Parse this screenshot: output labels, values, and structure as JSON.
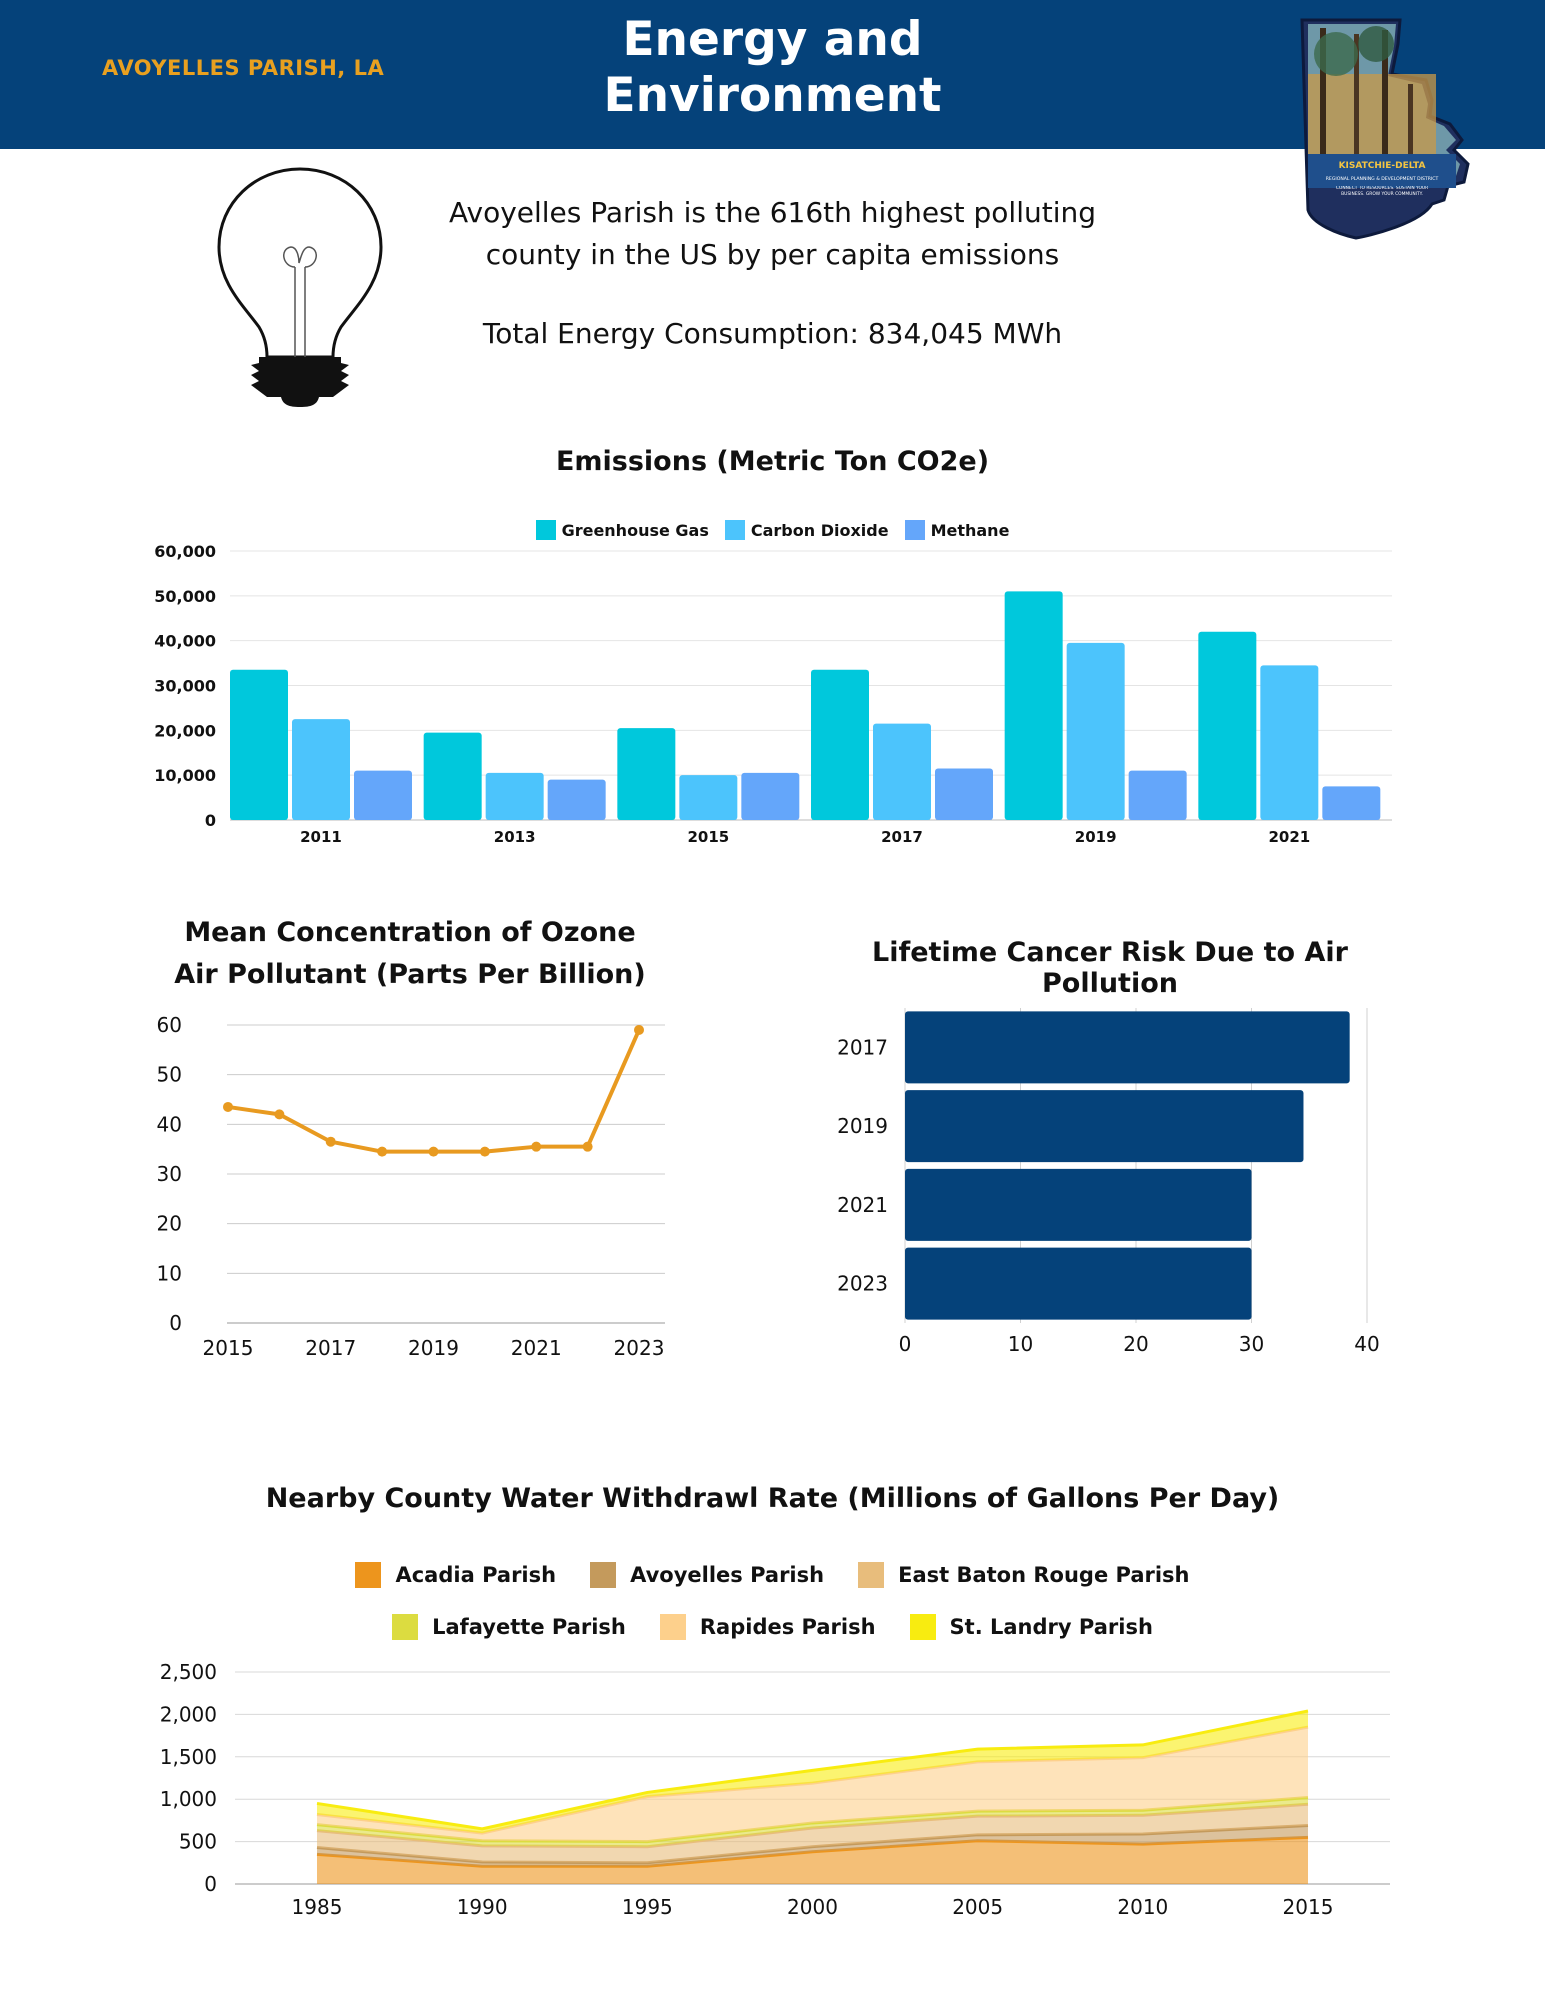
{
  "header": {
    "location": "AVOYELLES PARISH, LA",
    "title_line1": "Energy and",
    "title_line2": "Environment",
    "logo_text": "KISATCHIE-DELTA",
    "logo_subtext": "REGIONAL PLANNING & DEVELOPMENT DISTRICT",
    "logo_tagline": "CONNECT TO RESOURCES. SUSTAIN YOUR BUSINESS. GROW YOUR COMMUNITY."
  },
  "intro": {
    "line1": "Avoyelles Parish is the 616th highest polluting",
    "line2": "county in the US by per capita emissions",
    "consumption": "Total Energy Consumption: 834,045 MWh"
  },
  "colors": {
    "header_bg": "#05427a",
    "accent": "#e8a020"
  },
  "chart_data": [
    {
      "type": "bar",
      "title": "Emissions (Metric Ton CO2e)",
      "categories": [
        "2011",
        "2013",
        "2015",
        "2017",
        "2019",
        "2021"
      ],
      "series": [
        {
          "name": "Greenhouse Gas",
          "color": "#00c8dc",
          "values": [
            33500,
            19500,
            20500,
            33500,
            51000,
            42000
          ]
        },
        {
          "name": "Carbon Dioxide",
          "color": "#4cc4fc",
          "values": [
            22500,
            10500,
            10000,
            21500,
            39500,
            34500
          ]
        },
        {
          "name": "Methane",
          "color": "#64a6fa",
          "values": [
            11000,
            9000,
            10500,
            11500,
            11000,
            7500
          ]
        }
      ],
      "ylim": [
        0,
        60000
      ],
      "yticks": [
        "0",
        "10,000",
        "20,000",
        "30,000",
        "40,000",
        "50,000",
        "60,000"
      ],
      "legend": "top-center",
      "grid": true
    },
    {
      "type": "line",
      "title": "Mean Concentration of Ozone Air Pollutant (Parts Per Billion)",
      "title_line1": "Mean Concentration of Ozone",
      "title_line2": "Air Pollutant (Parts Per Billion)",
      "x": [
        2015,
        2016,
        2017,
        2018,
        2019,
        2020,
        2021,
        2022,
        2023
      ],
      "values": [
        43.5,
        42,
        36.5,
        34.5,
        34.5,
        34.5,
        35.5,
        35.5,
        59
      ],
      "color": "#e89a20",
      "ylim": [
        0,
        60
      ],
      "yticks": [
        "0",
        "10",
        "20",
        "30",
        "40",
        "50",
        "60"
      ],
      "xticks": [
        "2015",
        "2017",
        "2019",
        "2021",
        "2023"
      ],
      "grid": true
    },
    {
      "type": "bar",
      "orientation": "horizontal",
      "title": "Lifetime Cancer Risk Due to Air Pollution",
      "categories": [
        "2017",
        "2019",
        "2021",
        "2023"
      ],
      "values": [
        38.5,
        34.5,
        30,
        30
      ],
      "color": "#05427a",
      "xlim": [
        0,
        40
      ],
      "xticks": [
        "0",
        "10",
        "20",
        "30",
        "40"
      ],
      "grid": true
    },
    {
      "type": "area",
      "stacked": true,
      "title": "Nearby County Water Withdrawl Rate (Millions of Gallons Per Day)",
      "x": [
        "1985",
        "1990",
        "1995",
        "2000",
        "2005",
        "2010",
        "2015"
      ],
      "series": [
        {
          "name": "Acadia Parish",
          "color": "#ed951d",
          "values": [
            350,
            210,
            210,
            380,
            510,
            470,
            550
          ]
        },
        {
          "name": "Avoyelles Parish",
          "color": "#c49a5c",
          "values": [
            80,
            50,
            40,
            60,
            70,
            120,
            140
          ]
        },
        {
          "name": "East Baton Rouge Parish",
          "color": "#e8bd7c",
          "values": [
            200,
            190,
            190,
            220,
            220,
            220,
            250
          ]
        },
        {
          "name": "Lafayette Parish",
          "color": "#dcdc40",
          "values": [
            70,
            60,
            60,
            60,
            60,
            60,
            80
          ]
        },
        {
          "name": "Rapides Parish",
          "color": "#fdd08c",
          "values": [
            120,
            90,
            530,
            470,
            580,
            620,
            830
          ]
        },
        {
          "name": "St. Landry Parish",
          "color": "#f8ec10",
          "values": [
            130,
            50,
            50,
            150,
            150,
            150,
            190
          ]
        }
      ],
      "ylim": [
        0,
        2500
      ],
      "yticks": [
        "0",
        "500",
        "1,000",
        "1,500",
        "2,000",
        "2,500"
      ],
      "legend": "top-center",
      "grid": true
    }
  ]
}
